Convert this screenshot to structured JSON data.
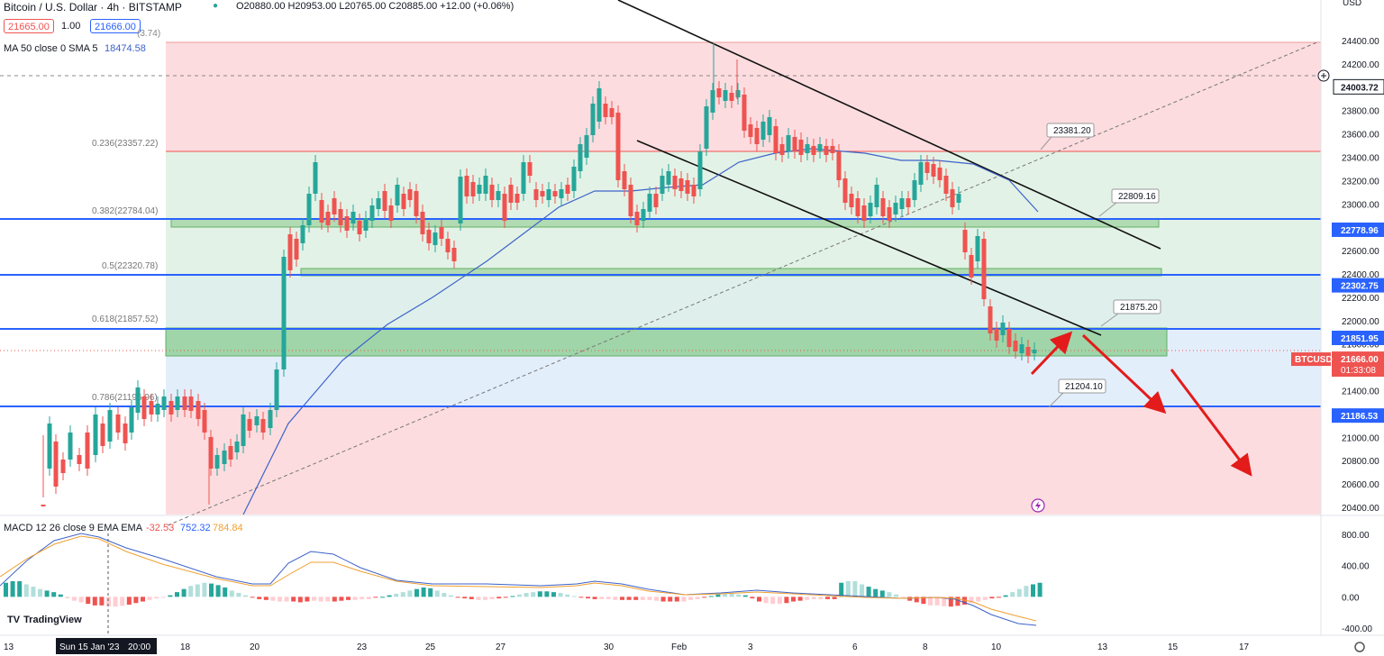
{
  "header": {
    "symbol": "Bitcoin / U.S. Dollar · 4h · BITSTAMP",
    "ohlc": "O20880.00 H20953.00 L20765.00 C20885.00 +12.00 (+0.06%)",
    "bid": "21665.00",
    "spread": "1.00",
    "ask": "21666.00",
    "ma": "MA 50 close 0 SMA 5",
    "ma_value": "18474.58",
    "partial_val": "3.74",
    "currency": "USD"
  },
  "macd_header": {
    "label": "MACD 12 26 close 9 EMA EMA",
    "hist": "-32.53",
    "macd": "752.32",
    "signal": "784.84"
  },
  "logo_text": "TradingView",
  "time_label": "01:33:08",
  "symbol_tag": "BTCUSD",
  "colors": {
    "up": "#26a69a",
    "down": "#ef5350",
    "level": "#2962ff",
    "arrow": "#e31b1b",
    "ma": "#3d63c9",
    "signal": "#f0a030"
  },
  "chart_data": {
    "type": "candlestick",
    "x_labels": [
      "13",
      "Sun 15 Jan '23",
      "20:00",
      "18",
      "20",
      "23",
      "25",
      "27",
      "30",
      "Feb",
      "3",
      "6",
      "8",
      "10",
      "13",
      "15",
      "17"
    ],
    "y_ticks": [
      "24400.00",
      "24200.00",
      "24000.00",
      "23800.00",
      "23600.00",
      "23400.00",
      "23200.00",
      "23000.00",
      "22800.00",
      "22600.00",
      "22400.00",
      "22200.00",
      "22000.00",
      "21800.00",
      "21600.00",
      "21400.00",
      "21200.00",
      "21000.00",
      "20800.00",
      "20600.00",
      "20400.00"
    ],
    "ylim": [
      20300,
      24560
    ],
    "price_labels": [
      {
        "text": "24003.72",
        "value": 24003.72,
        "style": "outline"
      },
      {
        "text": "22778.96",
        "value": 22778.96,
        "style": "level"
      },
      {
        "text": "22302.75",
        "value": 22302.75,
        "style": "level"
      },
      {
        "text": "21851.95",
        "value": 21851.95,
        "style": "level"
      },
      {
        "text": "21666.00",
        "value": 21666.0,
        "style": "current"
      },
      {
        "text": "21186.53",
        "value": 21186.53,
        "style": "level"
      }
    ],
    "fib_levels": [
      {
        "label": "0.236(23357.22)",
        "value": 23357.22
      },
      {
        "label": "0.382(22784.04)",
        "value": 22784.04
      },
      {
        "label": "0.5(22320.78)",
        "value": 22320.78
      },
      {
        "label": "0.618(21857.52)",
        "value": 21857.52
      },
      {
        "label": "0.786(21196.96)",
        "value": 21196.96
      }
    ],
    "callouts": [
      "23381.20",
      "22809.16",
      "21875.20",
      "21204.10"
    ],
    "macd_ticks": [
      "800.00",
      "400.00",
      "0.00",
      "-400.00"
    ],
    "macd_ylim": [
      -480,
      920
    ]
  }
}
